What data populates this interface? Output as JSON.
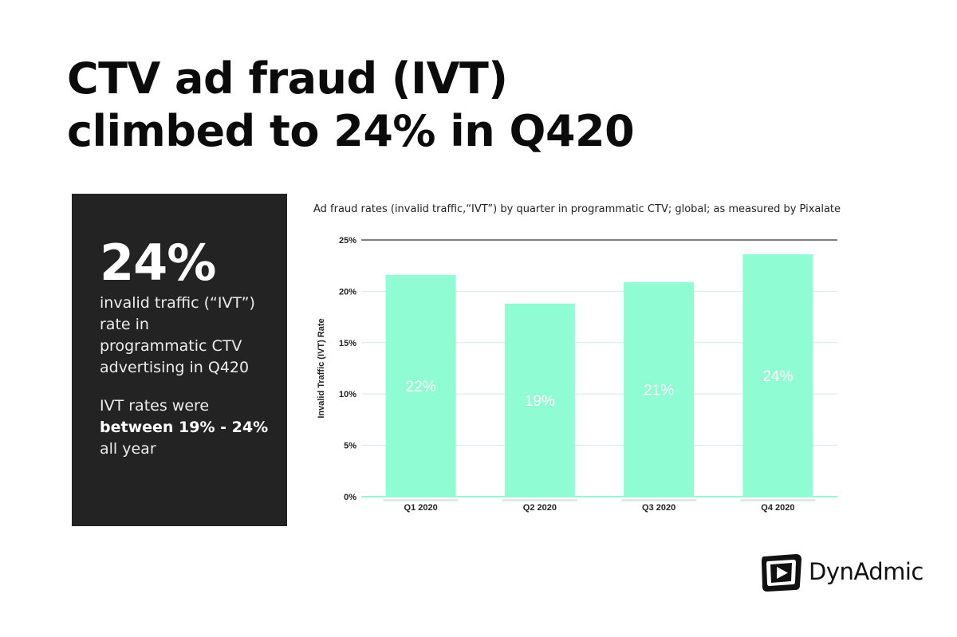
{
  "headline": {
    "line1": "CTV ad fraud (IVT)",
    "line2": "climbed to 24% in Q420"
  },
  "stat_panel": {
    "big_value": "24%",
    "desc_lines": [
      "invalid traffic (“IVT”)",
      "rate in",
      "programmatic CTV",
      "advertising in Q420"
    ],
    "note_line1": "IVT rates were",
    "note_bold": "between 19% - 24%",
    "note_line3": "all year"
  },
  "brand": {
    "name": "DynAdmic"
  },
  "colors": {
    "bar": "#8ffcd4",
    "panel": "#232323",
    "grid": "#cfeee2",
    "top_line": "#555555"
  },
  "chart_data": {
    "type": "bar",
    "title": "Ad fraud rates (invalid traffic,“IVT”) by quarter in programmatic CTV; global; as measured by Pixalate",
    "xlabel": "",
    "ylabel": "Invalid Traffic (IVT) Rate",
    "categories": [
      "Q1 2020",
      "Q2 2020",
      "Q3 2020",
      "Q4 2020"
    ],
    "values": [
      21.6,
      18.8,
      20.9,
      23.6
    ],
    "data_labels": [
      "22%",
      "19%",
      "21%",
      "24%"
    ],
    "ylim": [
      0,
      25
    ],
    "yticks": [
      0,
      5,
      10,
      15,
      20,
      25
    ],
    "ytick_labels": [
      "0%",
      "5%",
      "10%",
      "15%",
      "20%",
      "25%"
    ],
    "grid": true,
    "legend": "none"
  }
}
